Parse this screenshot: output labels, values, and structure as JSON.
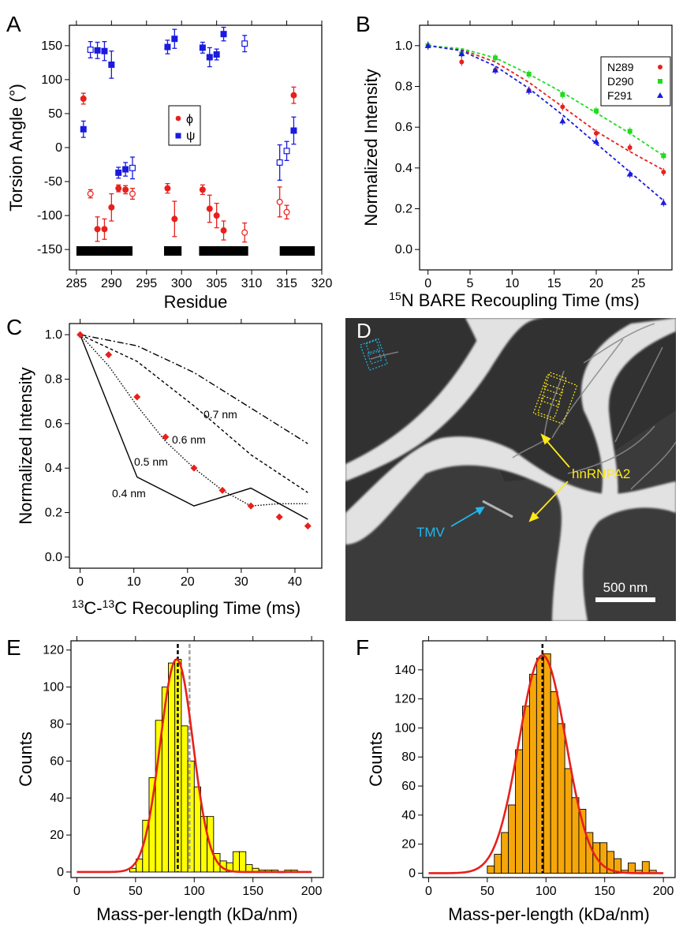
{
  "chart_data": [
    {
      "panel": "A",
      "type": "scatter",
      "xlabel": "Residue",
      "ylabel": "Torsion Angle (°)",
      "xlim": [
        284,
        320
      ],
      "ylim": [
        -180,
        180
      ],
      "xticks": [
        285,
        290,
        295,
        300,
        305,
        310,
        315,
        320
      ],
      "yticks": [
        -150,
        -100,
        -50,
        0,
        50,
        100,
        150
      ],
      "legend": {
        "position": "center",
        "entries": [
          "ϕ",
          "ψ"
        ]
      },
      "series": [
        {
          "name": "ϕ",
          "color": "#e8201c",
          "marker": "circle",
          "points": [
            {
              "x": 286,
              "y": 72,
              "err": 8,
              "filled": true
            },
            {
              "x": 287,
              "y": -68,
              "err": 6,
              "filled": false
            },
            {
              "x": 288,
              "y": -120,
              "err": 18,
              "filled": true
            },
            {
              "x": 289,
              "y": -120,
              "err": 15,
              "filled": true
            },
            {
              "x": 290,
              "y": -88,
              "err": 20,
              "filled": true
            },
            {
              "x": 291,
              "y": -60,
              "err": 5,
              "filled": true
            },
            {
              "x": 292,
              "y": -62,
              "err": 6,
              "filled": true
            },
            {
              "x": 293,
              "y": -68,
              "err": 8,
              "filled": false
            },
            {
              "x": 298,
              "y": -60,
              "err": 7,
              "filled": true
            },
            {
              "x": 299,
              "y": -105,
              "err": 26,
              "filled": true
            },
            {
              "x": 303,
              "y": -62,
              "err": 7,
              "filled": true
            },
            {
              "x": 304,
              "y": -90,
              "err": 20,
              "filled": true
            },
            {
              "x": 305,
              "y": -100,
              "err": 18,
              "filled": true
            },
            {
              "x": 306,
              "y": -122,
              "err": 14,
              "filled": true
            },
            {
              "x": 309,
              "y": -125,
              "err": 14,
              "filled": false
            },
            {
              "x": 314,
              "y": -80,
              "err": 22,
              "filled": false
            },
            {
              "x": 315,
              "y": -95,
              "err": 10,
              "filled": false
            },
            {
              "x": 316,
              "y": 77,
              "err": 12,
              "filled": true
            }
          ]
        },
        {
          "name": "ψ",
          "color": "#1a1ae0",
          "marker": "square",
          "points": [
            {
              "x": 286,
              "y": 27,
              "err": 12,
              "filled": true
            },
            {
              "x": 287,
              "y": 144,
              "err": 12,
              "filled": false
            },
            {
              "x": 288,
              "y": 143,
              "err": 12,
              "filled": true
            },
            {
              "x": 289,
              "y": 142,
              "err": 14,
              "filled": true
            },
            {
              "x": 290,
              "y": 122,
              "err": 20,
              "filled": true
            },
            {
              "x": 291,
              "y": -37,
              "err": 8,
              "filled": true
            },
            {
              "x": 292,
              "y": -32,
              "err": 10,
              "filled": true
            },
            {
              "x": 293,
              "y": -30,
              "err": 16,
              "filled": false
            },
            {
              "x": 298,
              "y": 148,
              "err": 10,
              "filled": true
            },
            {
              "x": 299,
              "y": 160,
              "err": 14,
              "filled": true
            },
            {
              "x": 303,
              "y": 147,
              "err": 8,
              "filled": true
            },
            {
              "x": 304,
              "y": 133,
              "err": 14,
              "filled": true
            },
            {
              "x": 305,
              "y": 137,
              "err": 8,
              "filled": true
            },
            {
              "x": 306,
              "y": 167,
              "err": 10,
              "filled": true
            },
            {
              "x": 309,
              "y": 153,
              "err": 12,
              "filled": false
            },
            {
              "x": 314,
              "y": -22,
              "err": 26,
              "filled": false
            },
            {
              "x": 315,
              "y": -5,
              "err": 14,
              "filled": false
            },
            {
              "x": 316,
              "y": 25,
              "err": 20,
              "filled": true
            }
          ]
        }
      ],
      "segments": [
        [
          285,
          293
        ],
        [
          297.5,
          300
        ],
        [
          302.5,
          309.5
        ],
        [
          314,
          319
        ]
      ]
    },
    {
      "panel": "B",
      "type": "scatter",
      "xlabel": "15N BARE Recoupling Time (ms)",
      "xlabel_parts": {
        "superscript": "15",
        "text": "N BARE Recoupling Time (ms)"
      },
      "ylabel": "Normalized Intensity",
      "xlim": [
        -1,
        29
      ],
      "ylim": [
        -0.1,
        1.1
      ],
      "xticks": [
        0,
        5,
        10,
        15,
        20,
        25
      ],
      "yticks": [
        0.0,
        0.2,
        0.4,
        0.6,
        0.8,
        1.0
      ],
      "legend": {
        "position": "top-right"
      },
      "x": [
        0,
        4,
        8,
        12,
        16,
        20,
        24,
        28
      ],
      "series": [
        {
          "name": "N289",
          "color": "#e8201c",
          "marker": "circle",
          "values": [
            1.0,
            0.92,
            0.88,
            0.78,
            0.7,
            0.57,
            0.5,
            0.38
          ]
        },
        {
          "name": "D290",
          "color": "#1fdc1f",
          "marker": "square",
          "values": [
            1.0,
            0.96,
            0.94,
            0.86,
            0.76,
            0.68,
            0.58,
            0.46
          ]
        },
        {
          "name": "F291",
          "color": "#1a1ae0",
          "marker": "triangle",
          "values": [
            1.0,
            0.96,
            0.88,
            0.78,
            0.63,
            0.53,
            0.37,
            0.23
          ]
        }
      ],
      "fits": [
        {
          "color": "#e8201c",
          "values": [
            1.0,
            0.98,
            0.92,
            0.82,
            0.7,
            0.58,
            0.48,
            0.39
          ]
        },
        {
          "color": "#1fdc1f",
          "values": [
            1.0,
            0.985,
            0.94,
            0.86,
            0.77,
            0.67,
            0.57,
            0.46
          ]
        },
        {
          "color": "#1a1ae0",
          "values": [
            1.0,
            0.975,
            0.9,
            0.79,
            0.66,
            0.52,
            0.38,
            0.24
          ]
        }
      ]
    },
    {
      "panel": "C",
      "type": "line",
      "xlabel": "13C-13C Recoupling Time (ms)",
      "xlabel_parts": {
        "sup1": "13",
        "mid": "C-",
        "sup2": "13",
        "end": "C Recoupling Time (ms)"
      },
      "ylabel": "Normalized Intensity",
      "xlim": [
        -2,
        45
      ],
      "ylim": [
        -0.05,
        1.05
      ],
      "xticks": [
        0,
        10,
        20,
        30,
        40
      ],
      "yticks": [
        0.0,
        0.2,
        0.4,
        0.6,
        0.8,
        1.0
      ],
      "points": {
        "color": "#e8201c",
        "x": [
          0,
          5.3,
          10.6,
          15.9,
          21.2,
          26.5,
          31.8,
          37.1,
          42.4
        ],
        "y": [
          1.0,
          0.91,
          0.72,
          0.54,
          0.4,
          0.3,
          0.23,
          0.18,
          0.14
        ]
      },
      "series": [
        {
          "name": "0.4 nm",
          "style": "solid",
          "x": [
            0,
            10.6,
            21.2,
            31.8,
            42.4
          ],
          "y": [
            1.0,
            0.36,
            0.23,
            0.31,
            0.17
          ]
        },
        {
          "name": "0.5 nm",
          "style": "dotted",
          "x": [
            0,
            5.3,
            10.6,
            15.9,
            21.2,
            26.5,
            31.8,
            37.1,
            42.4
          ],
          "y": [
            1.0,
            0.86,
            0.68,
            0.52,
            0.4,
            0.3,
            0.23,
            0.24,
            0.24
          ]
        },
        {
          "name": "0.6 nm",
          "style": "dashed",
          "x": [
            0,
            10.6,
            21.2,
            31.8,
            42.4
          ],
          "y": [
            1.0,
            0.88,
            0.68,
            0.46,
            0.29
          ]
        },
        {
          "name": "0.7 nm",
          "style": "dashdot",
          "x": [
            0,
            10.6,
            21.2,
            31.8,
            42.4
          ],
          "y": [
            1.0,
            0.95,
            0.83,
            0.67,
            0.51
          ]
        }
      ],
      "annotations": [
        "0.7 nm",
        "0.6 nm",
        "0.5 nm",
        "0.4 nm"
      ]
    },
    {
      "panel": "E",
      "type": "bar",
      "xlabel": "Mass-per-length (kDa/nm)",
      "ylabel": "Counts",
      "xlim": [
        -5,
        210
      ],
      "ylim": [
        -3,
        125
      ],
      "xticks": [
        0,
        50,
        100,
        150,
        200
      ],
      "yticks": [
        0,
        20,
        40,
        60,
        80,
        100,
        120
      ],
      "color": "#ffff00",
      "bin_width": 5.5,
      "bin_starts": [
        45,
        50.5,
        56,
        61.5,
        67,
        72.5,
        78,
        83.5,
        89,
        94.5,
        100,
        105.5,
        111,
        116.5,
        122,
        127.5,
        133,
        138.5,
        144,
        149.5,
        155,
        160.5,
        166,
        171.5,
        177,
        182.5
      ],
      "counts": [
        2,
        7,
        28,
        51,
        82,
        100,
        113,
        115,
        79,
        60,
        46,
        30,
        30,
        10,
        6,
        5,
        11,
        11,
        4,
        2,
        1,
        1,
        1,
        0,
        1,
        1
      ],
      "gaussian": {
        "amplitude": 115,
        "mean": 85,
        "sigma": 14
      },
      "vlines": [
        {
          "x": 86,
          "color": "#000000"
        },
        {
          "x": 96,
          "color": "#a0a0a0"
        }
      ]
    },
    {
      "panel": "F",
      "type": "bar",
      "xlabel": "Mass-per-length (kDa/nm)",
      "ylabel": "Counts",
      "xlim": [
        -5,
        210
      ],
      "ylim": [
        -3,
        160
      ],
      "xticks": [
        0,
        50,
        100,
        150,
        200
      ],
      "yticks": [
        0,
        20,
        40,
        60,
        80,
        100,
        120,
        140
      ],
      "color": "#f5a70a",
      "bin_width": 6,
      "bin_starts": [
        50,
        56,
        62,
        68,
        74,
        80,
        86,
        92,
        98,
        104,
        110,
        116,
        122,
        128,
        134,
        140,
        146,
        152,
        158,
        164,
        170,
        176,
        182,
        188
      ],
      "counts": [
        5,
        13,
        28,
        47,
        85,
        115,
        137,
        148,
        151,
        125,
        103,
        72,
        52,
        44,
        28,
        21,
        21,
        15,
        10,
        2,
        7,
        2,
        8,
        2
      ],
      "gaussian": {
        "amplitude": 150,
        "mean": 97,
        "sigma": 20
      },
      "vlines": [
        {
          "x": 97,
          "color": "#000000"
        }
      ]
    }
  ],
  "micrograph": {
    "label": "D",
    "labels": [
      "hnRNPA2",
      "TMV"
    ],
    "scalebar": "500 nm",
    "colors": {
      "hnrnpa2": "#ffe81a",
      "tmv": "#1fb8f0"
    }
  },
  "panel_letters": [
    "A",
    "B",
    "C",
    "D",
    "E",
    "F"
  ]
}
